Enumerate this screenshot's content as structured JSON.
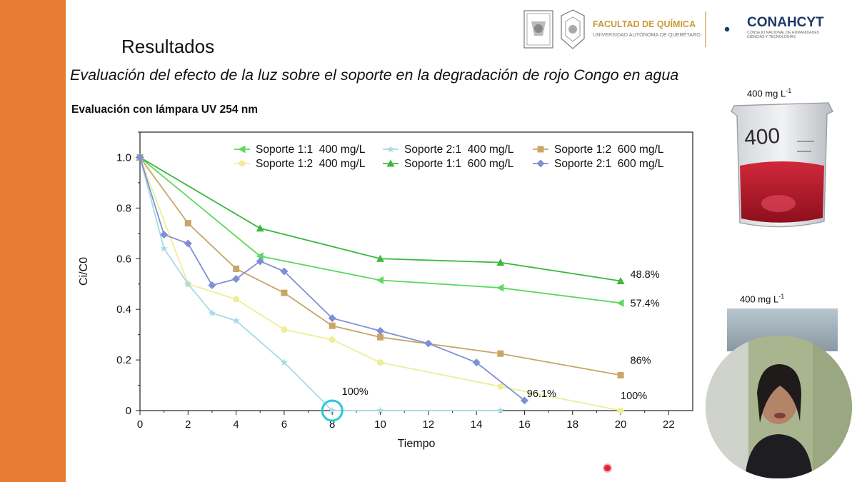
{
  "header": {
    "faculty_name": "FACULTAD DE QUÍMICA",
    "university_name": "UNIVERSIDAD AUTÓNOMA DE QUERÉTARO",
    "conahcyt_name": "CONAHCYT",
    "conahcyt_sub1": "CONSEJO NACIONAL DE HUMANIDADES",
    "conahcyt_sub2": "CIENCIAS Y TECNOLOGÍAS"
  },
  "slide": {
    "title": "Resultados",
    "subtitle": "Evaluación del efecto de la luz sobre el soporte en la degradación de rojo Congo en agua",
    "chart_heading": "Evaluación con lámpara UV 254 nm"
  },
  "photos": {
    "beaker_label_text": "400 mg L",
    "beaker_label_sup": "-1",
    "beaker_marking": "400",
    "webcam_label_text": "400 mg L",
    "webcam_label_sup": "-1"
  },
  "colors": {
    "accent": "#e77a35"
  },
  "chart_data": {
    "type": "line",
    "xlabel": "Tiempo",
    "ylabel": "Ci/C0",
    "xlim": [
      0,
      23
    ],
    "ylim": [
      0,
      1.1
    ],
    "xticks": [
      0,
      2,
      4,
      6,
      8,
      10,
      12,
      14,
      16,
      18,
      20,
      22
    ],
    "yticks": [
      0,
      0.2,
      0.4,
      0.6,
      0.8,
      1.0
    ],
    "ytick_labels": [
      "0",
      "0.2",
      "0.4",
      "0.6",
      "0.8",
      "1.0"
    ],
    "legend_position": "top-right",
    "series": [
      {
        "name": "Soporte 1:1  400 mg/L",
        "color": "#5fd85f",
        "marker": "triangle-left",
        "x": [
          0,
          5,
          10,
          15,
          20
        ],
        "y": [
          1.0,
          0.61,
          0.515,
          0.485,
          0.425
        ]
      },
      {
        "name": "Soporte 1:2  400 mg/L",
        "color": "#f0ed98",
        "marker": "circle",
        "x": [
          0,
          2,
          4,
          6,
          8,
          10,
          15,
          20
        ],
        "y": [
          1.0,
          0.5,
          0.44,
          0.32,
          0.28,
          0.19,
          0.095,
          0.0
        ]
      },
      {
        "name": "Soporte 2:1  400 mg/L",
        "color": "#a6dbe6",
        "marker": "star",
        "x": [
          0,
          1,
          2,
          3,
          4,
          6,
          8,
          10,
          15
        ],
        "y": [
          1.0,
          0.64,
          0.5,
          0.385,
          0.355,
          0.19,
          0.0,
          0.0,
          0.0
        ]
      },
      {
        "name": "Soporte 1:1  600 mg/L",
        "color": "#3cb83c",
        "marker": "triangle-up",
        "x": [
          0,
          5,
          10,
          15,
          20
        ],
        "y": [
          1.0,
          0.72,
          0.6,
          0.585,
          0.512
        ]
      },
      {
        "name": "Soporte 1:2  600 mg/L",
        "color": "#c8a665",
        "marker": "square",
        "x": [
          0,
          2,
          4,
          6,
          8,
          10,
          15,
          20
        ],
        "y": [
          1.0,
          0.74,
          0.56,
          0.465,
          0.335,
          0.29,
          0.225,
          0.14
        ]
      },
      {
        "name": "Soporte 2:1  600 mg/L",
        "color": "#7f8ed8",
        "marker": "diamond",
        "x": [
          0,
          1,
          2,
          3,
          4,
          5,
          6,
          8,
          10,
          12,
          14,
          16
        ],
        "y": [
          1.0,
          0.695,
          0.66,
          0.495,
          0.52,
          0.59,
          0.55,
          0.365,
          0.315,
          0.265,
          0.19,
          0.04
        ]
      }
    ],
    "annotations": [
      {
        "text": "48.8%",
        "x": 20.4,
        "y": 0.525
      },
      {
        "text": "57.4%",
        "x": 20.4,
        "y": 0.41
      },
      {
        "text": "86%",
        "x": 20.4,
        "y": 0.185
      },
      {
        "text": "100%",
        "x": 20.0,
        "y": 0.045
      },
      {
        "text": "96.1%",
        "x": 16.1,
        "y": 0.053
      },
      {
        "text": "100%",
        "x": 8.4,
        "y": 0.062
      }
    ],
    "highlight_circle": {
      "x": 8,
      "y": 0.0,
      "color": "#2bc6d6"
    }
  }
}
